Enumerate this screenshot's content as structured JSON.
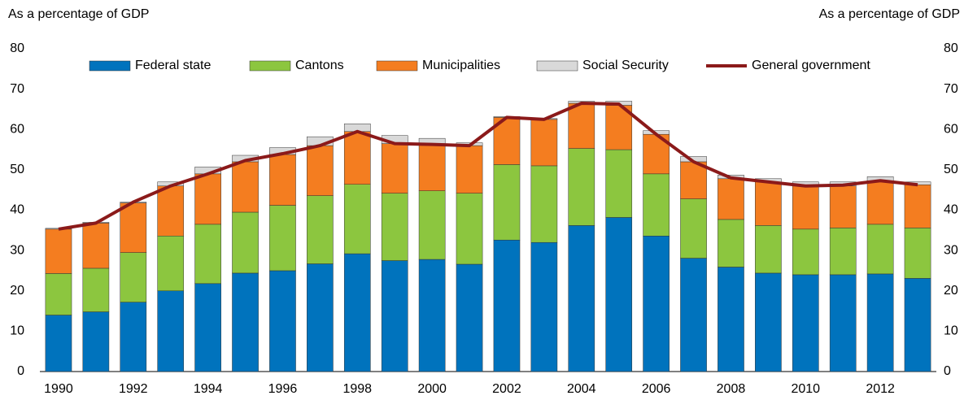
{
  "chart_data": {
    "type": "bar",
    "stacked": true,
    "y_label": "As a percentage of GDP",
    "y2_label": "As a percentage of GDP",
    "categories": [
      "1990",
      null,
      "1992",
      null,
      "1994",
      null,
      "1996",
      null,
      "1998",
      null,
      "2000",
      null,
      "2002",
      null,
      "2004",
      null,
      "2006",
      null,
      "2008",
      null,
      "2010",
      null,
      "2012",
      null
    ],
    "series": [
      {
        "name": "Federal state",
        "color": "#0073bd",
        "values": [
          14,
          14.8,
          17.2,
          20,
          21.8,
          24.4,
          25,
          26.7,
          29.2,
          27.5,
          27.8,
          26.6,
          32.6,
          32,
          36.2,
          38.2,
          33.6,
          28.1,
          25.9,
          24.4,
          24,
          24,
          24.2,
          23.1
        ]
      },
      {
        "name": "Cantons",
        "color": "#8cc63f",
        "values": [
          10.3,
          10.8,
          12.3,
          13.6,
          14.7,
          15.1,
          16.2,
          16.9,
          17.2,
          16.7,
          17,
          17.6,
          18.7,
          19,
          19.1,
          16.8,
          15.4,
          14.7,
          11.8,
          11.8,
          11.3,
          11.6,
          12.3,
          12.5
        ]
      },
      {
        "name": "Municipalities",
        "color": "#f47d20",
        "values": [
          11,
          11.2,
          12.3,
          12.4,
          12.5,
          12.5,
          12.6,
          12.4,
          13.1,
          12.3,
          11.7,
          11.8,
          11.7,
          11.5,
          11.2,
          11,
          9.8,
          9.2,
          10.1,
          10.8,
          10.7,
          10.4,
          10.8,
          10.7
        ]
      },
      {
        "name": "Social Security",
        "color": "#d9d9d9",
        "values": [
          0.2,
          0.2,
          0.2,
          1,
          1.7,
          1.6,
          1.7,
          2.2,
          1.9,
          2,
          1.3,
          0.7,
          0.2,
          0.2,
          0.5,
          1,
          0.9,
          1.3,
          0.9,
          0.8,
          1,
          1,
          1,
          0.7
        ]
      },
      {
        "name": "General government",
        "color": "#8b1a1a",
        "type": "line",
        "values": [
          35.3,
          36.8,
          42,
          46,
          49,
          52.3,
          54,
          56,
          59.5,
          56.5,
          56.3,
          56,
          63,
          62.5,
          66.5,
          66.3,
          58.8,
          52,
          48,
          47,
          46,
          46.2,
          47.3,
          46.3
        ]
      }
    ],
    "ylim": [
      0,
      80
    ],
    "yticks": [
      0,
      10,
      20,
      30,
      40,
      50,
      60,
      70,
      80
    ],
    "y2lim": [
      0,
      80
    ],
    "y2ticks": [
      0,
      10,
      20,
      30,
      40,
      50,
      60,
      70,
      80
    ],
    "legend": "top"
  }
}
